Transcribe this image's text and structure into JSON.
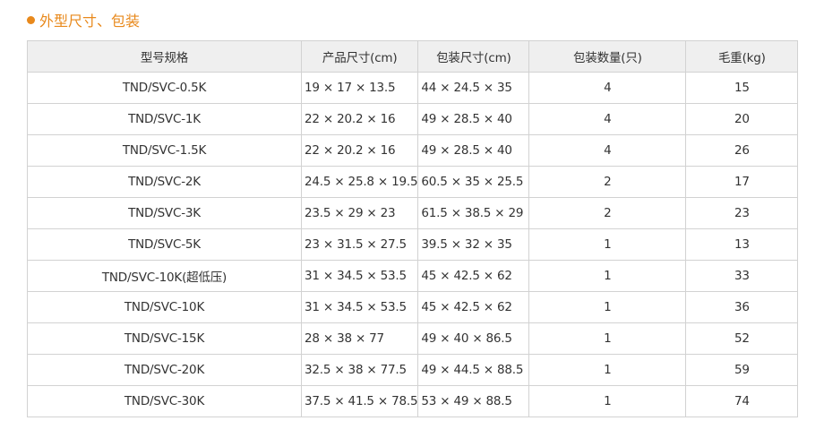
{
  "section": {
    "title": "外型尺寸、包装",
    "accent": "#e8891c"
  },
  "table": {
    "headers": [
      "型号规格",
      "产品尺寸(cm)",
      "包装尺寸(cm)",
      "包装数量(只)",
      "毛重(kg)"
    ],
    "rows": [
      [
        "TND/SVC-0.5K",
        "19 × 17 × 13.5",
        "44 × 24.5 × 35",
        "4",
        "15"
      ],
      [
        "TND/SVC-1K",
        "22 × 20.2 × 16",
        "49 × 28.5 × 40",
        "4",
        "20"
      ],
      [
        "TND/SVC-1.5K",
        "22 × 20.2 × 16",
        "49 × 28.5 × 40",
        "4",
        "26"
      ],
      [
        "TND/SVC-2K",
        "24.5 × 25.8 × 19.5",
        "60.5 × 35 × 25.5",
        "2",
        "17"
      ],
      [
        "TND/SVC-3K",
        "23.5 × 29 × 23",
        "61.5 × 38.5 × 29",
        "2",
        "23"
      ],
      [
        "TND/SVC-5K",
        "23 × 31.5 × 27.5",
        "39.5 × 32 × 35",
        "1",
        "13"
      ],
      [
        "TND/SVC-10K(超低压)",
        "31 × 34.5 × 53.5",
        "45 × 42.5 × 62",
        "1",
        "33"
      ],
      [
        "TND/SVC-10K",
        "31 × 34.5 × 53.5",
        "45 × 42.5 × 62",
        "1",
        "36"
      ],
      [
        "TND/SVC-15K",
        "28 × 38 × 77",
        "49 × 40 × 86.5",
        "1",
        "52"
      ],
      [
        "TND/SVC-20K",
        "32.5 × 38 × 77.5",
        "49 × 44.5 × 88.5",
        "1",
        "59"
      ],
      [
        "TND/SVC-30K",
        "37.5 × 41.5 × 78.5",
        "53 × 49 × 88.5",
        "1",
        "74"
      ]
    ]
  }
}
